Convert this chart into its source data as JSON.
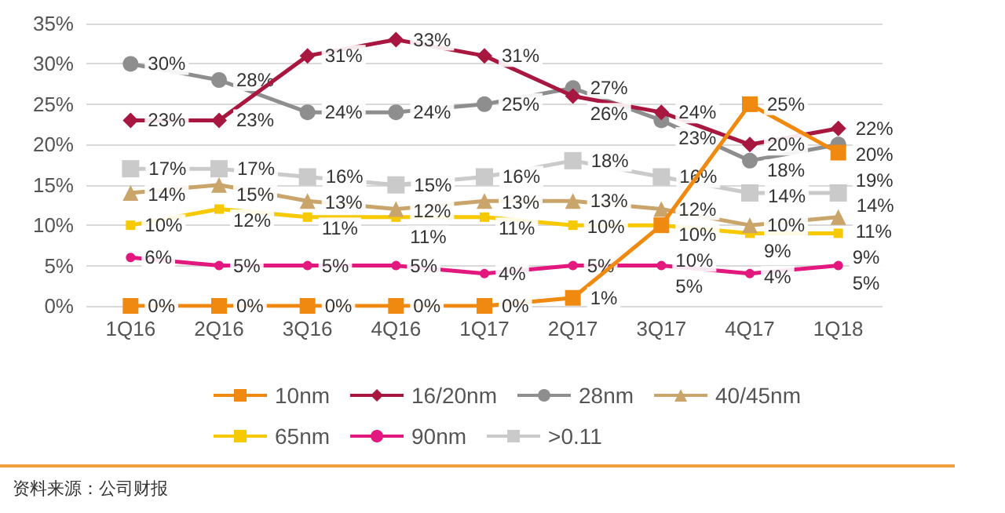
{
  "chart_data": {
    "type": "line",
    "categories": [
      "1Q16",
      "2Q16",
      "3Q16",
      "4Q16",
      "1Q17",
      "2Q17",
      "3Q17",
      "4Q17",
      "1Q18"
    ],
    "series": [
      {
        "name": "10nm",
        "color": "#f0890f",
        "marker": "square",
        "values": [
          0,
          0,
          0,
          0,
          0,
          1,
          10,
          25,
          19
        ],
        "value_labels": [
          "0%",
          "0%",
          "0%",
          "0%",
          "0%",
          "1%",
          "10%",
          "25%",
          "19%"
        ]
      },
      {
        "name": "16/20nm",
        "color": "#a8173f",
        "marker": "diamond",
        "values": [
          23,
          23,
          31,
          33,
          31,
          26,
          24,
          20,
          22
        ],
        "value_labels": [
          "23%",
          "23%",
          "31%",
          "33%",
          "31%",
          "26%",
          "24%",
          "20%",
          "22%"
        ]
      },
      {
        "name": "28nm",
        "color": "#8e8e8e",
        "marker": "circle",
        "values": [
          30,
          28,
          24,
          24,
          25,
          27,
          23,
          18,
          20
        ],
        "value_labels": [
          "30%",
          "28%",
          "24%",
          "24%",
          "25%",
          "27%",
          "23%",
          "18%",
          "20%"
        ]
      },
      {
        "name": "40/45nm",
        "color": "#c9a46b",
        "marker": "triangle",
        "values": [
          14,
          15,
          13,
          12,
          13,
          13,
          12,
          10,
          11
        ],
        "value_labels": [
          "14%",
          "15%",
          "13%",
          "12%",
          "13%",
          "13%",
          "12%",
          "10%",
          "11%"
        ]
      },
      {
        "name": "65nm",
        "color": "#f7c900",
        "marker": "square",
        "values": [
          10,
          12,
          11,
          11,
          11,
          10,
          10,
          9,
          9
        ],
        "value_labels": [
          "10%",
          "12%",
          "11%",
          "11%",
          "11%",
          "10%",
          "10%",
          "9%",
          "9%"
        ]
      },
      {
        "name": "90nm",
        "color": "#e2187e",
        "marker": "circle",
        "values": [
          6,
          5,
          5,
          5,
          4,
          5,
          5,
          4,
          5
        ],
        "value_labels": [
          "6%",
          "5%",
          "5%",
          "5%",
          "4%",
          "5%",
          "5%",
          "4%",
          "5%"
        ]
      },
      {
        "name": ">0.11",
        "color": "#cacaca",
        "marker": "square",
        "values": [
          17,
          17,
          16,
          15,
          16,
          18,
          16,
          14,
          14
        ],
        "value_labels": [
          "17%",
          "17%",
          "16%",
          "15%",
          "16%",
          "18%",
          "16%",
          "14%",
          "14%"
        ]
      }
    ],
    "ylim": [
      0,
      35
    ],
    "yticks": [
      {
        "value": 0,
        "label": "0%"
      },
      {
        "value": 5,
        "label": "5%"
      },
      {
        "value": 10,
        "label": "10%"
      },
      {
        "value": 15,
        "label": "15%"
      },
      {
        "value": 20,
        "label": "20%"
      },
      {
        "value": 25,
        "label": "25%"
      },
      {
        "value": 30,
        "label": "30%"
      },
      {
        "value": 35,
        "label": "35%"
      }
    ],
    "grid": "y",
    "legend": "bottom",
    "annotations": [
      "资料来源：公司财报"
    ]
  }
}
